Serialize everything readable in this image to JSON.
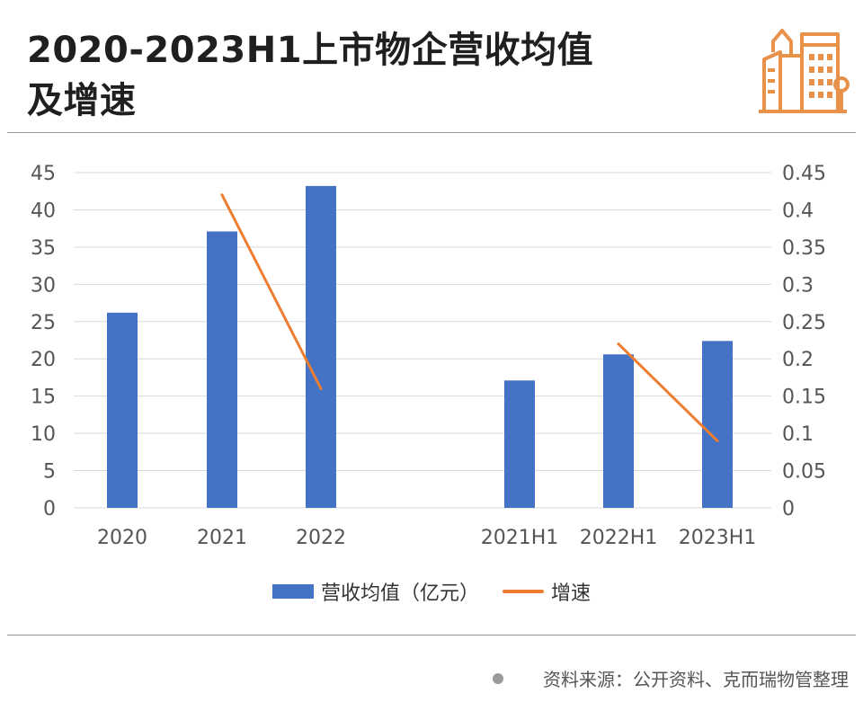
{
  "title": {
    "line1": "2020-2023H1上市物企营收均值",
    "line2": "及增速"
  },
  "logo": {
    "icon": "buildings-icon",
    "color": "#e8914a"
  },
  "legend": {
    "bar_label": "营收均值（亿元）",
    "line_label": "增速"
  },
  "source": {
    "text": "资料来源：公开资料、克而瑞物管整理"
  },
  "colors": {
    "bar": "#4472c4",
    "line": "#ed7d31",
    "grid": "#d9d9d9",
    "axis_text": "#555555"
  },
  "chart_data": {
    "type": "bar",
    "categories": [
      "2020",
      "2021",
      "2022",
      "2021H1",
      "2022H1",
      "2023H1"
    ],
    "series": [
      {
        "name": "营收均值（亿元）",
        "type": "bar",
        "axis": "left",
        "values": [
          26.2,
          37.1,
          43.2,
          17.1,
          20.6,
          22.4
        ]
      },
      {
        "name": "增速",
        "type": "line",
        "axis": "right",
        "segments": [
          {
            "categories": [
              "2021",
              "2022"
            ],
            "values": [
              0.42,
              0.16
            ]
          },
          {
            "categories": [
              "2022H1",
              "2023H1"
            ],
            "values": [
              0.22,
              0.09
            ]
          }
        ]
      }
    ],
    "y_left": {
      "min": 0,
      "max": 45,
      "ticks": [
        "0",
        "5",
        "10",
        "15",
        "20",
        "25",
        "30",
        "35",
        "40",
        "45"
      ]
    },
    "y_right": {
      "min": 0,
      "max": 0.45,
      "ticks": [
        "0",
        "0.05",
        "0.1",
        "0.15",
        "0.2",
        "0.25",
        "0.3",
        "0.35",
        "0.4",
        "0.45"
      ]
    },
    "grid": true,
    "legend_position": "bottom"
  }
}
